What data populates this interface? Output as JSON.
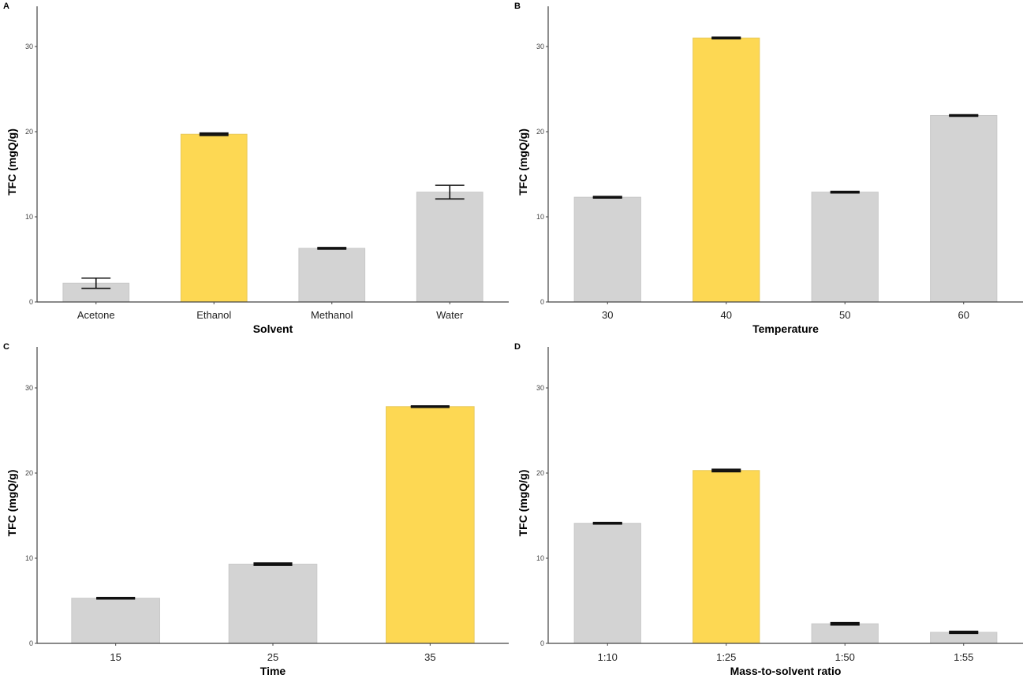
{
  "colors": {
    "highlight": "#FDD853",
    "default": "#D3D3D3",
    "bar_border": "#C8C8C8",
    "error": "#111111",
    "axis": "#444444"
  },
  "chart_data": [
    {
      "type": "bar",
      "panel": "A",
      "title": "",
      "xlabel": "Solvent",
      "ylabel": "TFC (mgQ/g)",
      "ylim": [
        0,
        35
      ],
      "yticks": [
        0,
        10,
        20,
        30
      ],
      "categories": [
        "Acetone",
        "Ethanol",
        "Methanol",
        "Water"
      ],
      "values": [
        2.2,
        19.7,
        6.3,
        12.9
      ],
      "errors": [
        0.6,
        0.1,
        0.05,
        0.8
      ],
      "highlight": [
        false,
        true,
        false,
        false
      ],
      "grid": false
    },
    {
      "type": "bar",
      "panel": "B",
      "title": "",
      "xlabel": "Temperature",
      "ylabel": "TFC (mgQ/g)",
      "ylim": [
        0,
        35
      ],
      "yticks": [
        0,
        10,
        20,
        30
      ],
      "categories": [
        "30",
        "40",
        "50",
        "60"
      ],
      "values": [
        12.3,
        31.0,
        12.9,
        21.9
      ],
      "errors": [
        0.05,
        0.05,
        0.05,
        0.05
      ],
      "highlight": [
        false,
        true,
        false,
        false
      ],
      "grid": false
    },
    {
      "type": "bar",
      "panel": "C",
      "title": "",
      "xlabel": "Time",
      "ylabel": "TFC (mgQ/g)",
      "ylim": [
        0,
        35
      ],
      "yticks": [
        0,
        10,
        20,
        30
      ],
      "categories": [
        "15",
        "25",
        "35"
      ],
      "values": [
        5.3,
        9.3,
        27.8
      ],
      "errors": [
        0.05,
        0.1,
        0.05
      ],
      "highlight": [
        false,
        false,
        true
      ],
      "grid": false
    },
    {
      "type": "bar",
      "panel": "D",
      "title": "",
      "xlabel": "Mass-to-solvent ratio",
      "ylabel": "TFC (mgQ/g)",
      "ylim": [
        0,
        35
      ],
      "yticks": [
        0,
        10,
        20,
        30
      ],
      "categories": [
        "1:10",
        "1:25",
        "1:50",
        "1:55"
      ],
      "values": [
        14.1,
        20.3,
        2.3,
        1.3
      ],
      "errors": [
        0.05,
        0.1,
        0.1,
        0.08
      ],
      "highlight": [
        false,
        true,
        false,
        false
      ],
      "grid": false
    }
  ]
}
